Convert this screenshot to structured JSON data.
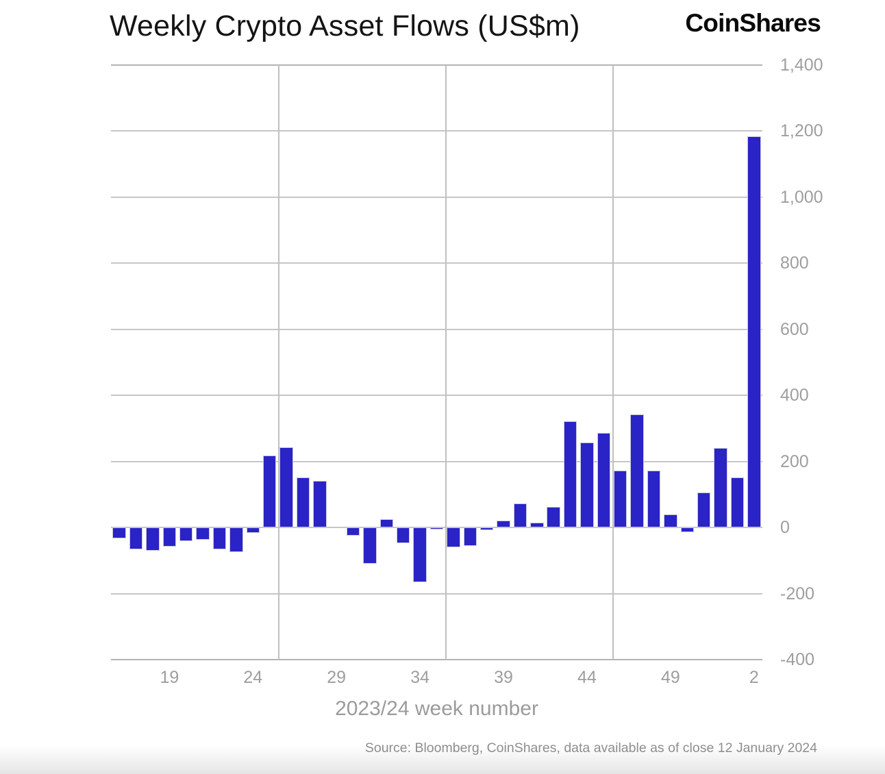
{
  "header": {
    "title": "Weekly Crypto Asset Flows (US$m)",
    "brand": "CoinShares"
  },
  "footer": {
    "source": "Source: Bloomberg, CoinShares, data available as of close 12 January 2024"
  },
  "chart_data": {
    "type": "bar",
    "title": "Weekly Crypto Asset Flows (US$m)",
    "xlabel": "2023/24 week number",
    "ylabel": "",
    "categories": [
      16,
      17,
      18,
      19,
      20,
      21,
      22,
      23,
      24,
      25,
      26,
      27,
      28,
      29,
      30,
      31,
      32,
      33,
      34,
      35,
      36,
      37,
      38,
      39,
      40,
      41,
      42,
      43,
      44,
      45,
      46,
      47,
      48,
      49,
      50,
      51,
      52,
      1,
      2
    ],
    "values": [
      -33,
      -67,
      -70,
      -58,
      -41,
      -37,
      -66,
      -74,
      -16,
      218,
      243,
      151,
      141,
      0,
      -25,
      -110,
      26,
      -48,
      -166,
      -5,
      -60,
      -55,
      -8,
      22,
      73,
      14,
      63,
      321,
      258,
      287,
      173,
      342,
      173,
      40,
      -15,
      105,
      240,
      151,
      1185
    ],
    "series_name": "Weekly crypto asset flows (US$m)",
    "ylim": [
      -400,
      1400
    ],
    "ytick_step": 200,
    "ytick_labels": [
      "1,400",
      "1,200",
      "1,000",
      "800",
      "600",
      "400",
      "200",
      "0",
      "-200",
      "-400"
    ],
    "xtick_labels": [
      19,
      24,
      29,
      34,
      39,
      44,
      49,
      2
    ],
    "grid": true,
    "legend_position": "none",
    "bar_color": "#2a23c6",
    "gridline_every_n_bars": 10
  }
}
